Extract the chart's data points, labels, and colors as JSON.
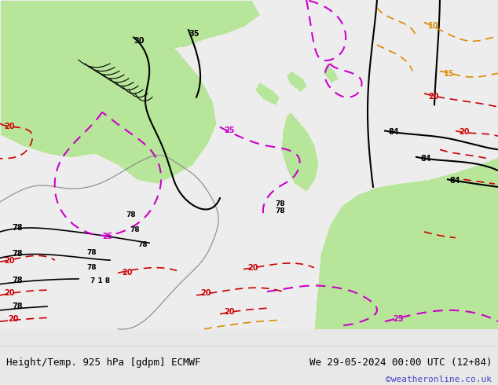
{
  "title_left": "Height/Temp. 925 hPa [gdpm] ECMWF",
  "title_right": "We 29-05-2024 00:00 UTC (12+84)",
  "credit": "©weatheronline.co.uk",
  "bg_color": "#f0f0f0",
  "land_color": "#c8f0a0",
  "border_color": "#888888",
  "font_family": "monospace",
  "title_fontsize": 9,
  "credit_fontsize": 8,
  "credit_color": "#4444cc"
}
